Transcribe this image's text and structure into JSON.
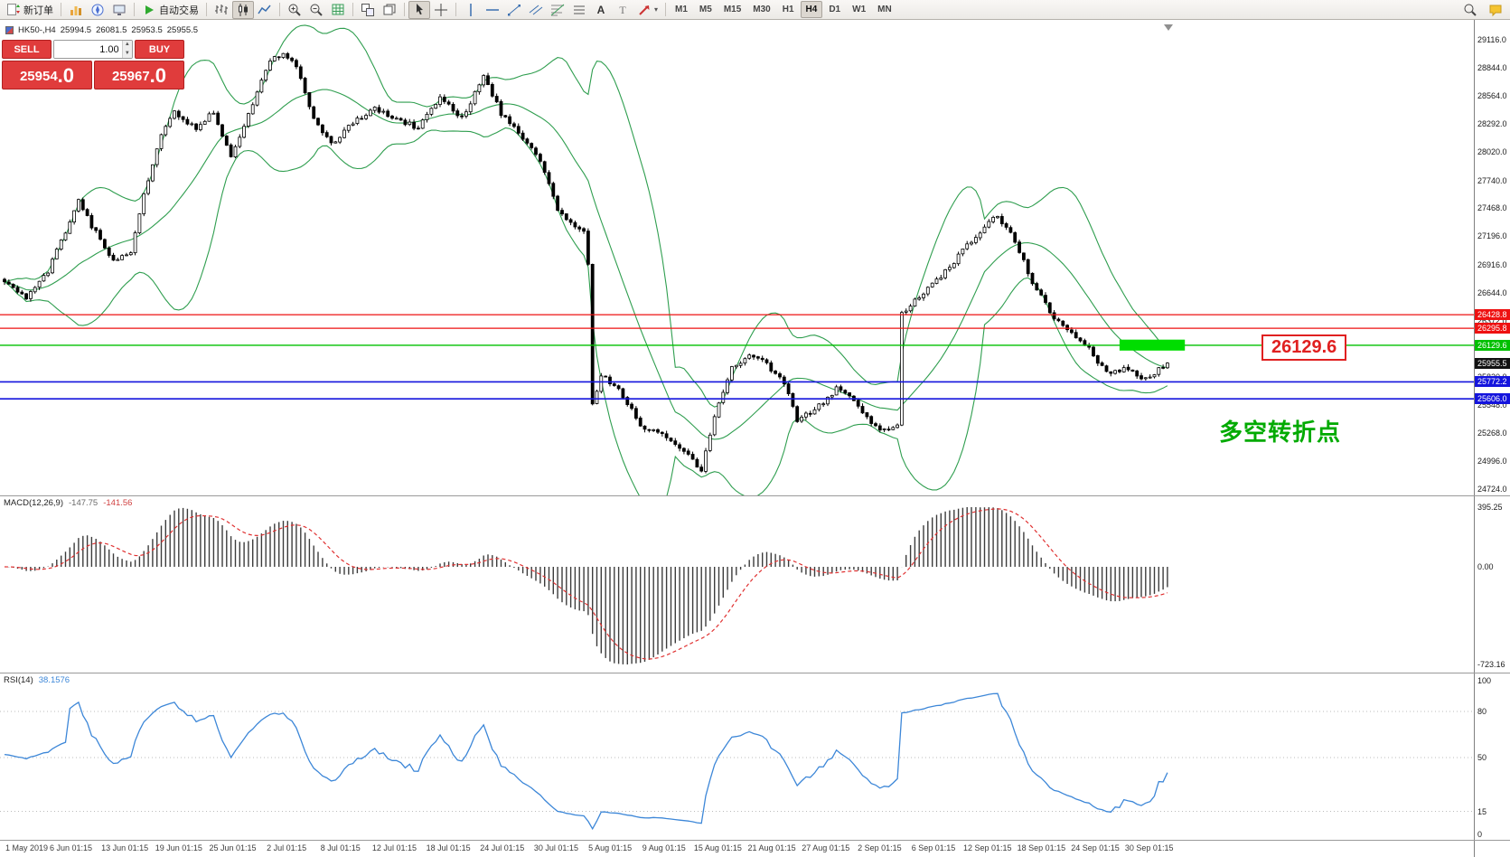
{
  "toolbar": {
    "new_order_label": "新订单",
    "autotrading_label": "自动交易",
    "timeframes": [
      "M1",
      "M5",
      "M15",
      "M30",
      "H1",
      "H4",
      "D1",
      "W1",
      "MN"
    ],
    "active_timeframe": "H4"
  },
  "symbol_header": {
    "symbol": "HK50-,H4",
    "open": "25994.5",
    "high": "26081.5",
    "low": "25953.5",
    "close": "25955.5"
  },
  "trade_panel": {
    "sell_label": "SELL",
    "buy_label": "BUY",
    "volume": "1.00",
    "sell_price": "25954",
    "sell_price_frac": ".0",
    "buy_price": "25967",
    "buy_price_frac": ".0"
  },
  "main_chart": {
    "price_max": 29116.0,
    "price_min": 24724.0,
    "price_labels": [
      "29116.0",
      "28844.0",
      "28564.0",
      "28292.0",
      "28020.0",
      "27740.0",
      "27468.0",
      "27196.0",
      "26916.0",
      "26644.0",
      "26372.0",
      "26100.0",
      "25820.0",
      "25548.0",
      "25268.0",
      "24996.0",
      "24724.0"
    ],
    "hlines": [
      {
        "price": 26428.8,
        "label": "26428.8",
        "color": "#ee1111",
        "width": 1.2
      },
      {
        "price": 26295.8,
        "label": "26295.8",
        "color": "#ee1111",
        "width": 1.2
      },
      {
        "price": 26129.6,
        "label": "26129.6",
        "color": "#00c000",
        "width": 1.4
      },
      {
        "price": 25772.2,
        "label": "25772.2",
        "color": "#1414dd",
        "width": 1.6
      },
      {
        "price": 25606.0,
        "label": "25606.0",
        "color": "#1414dd",
        "width": 1.6
      }
    ],
    "current_price": {
      "label": "25955.5",
      "price": 25955.5,
      "color": "#111111"
    },
    "highlight": {
      "price_top": 26185,
      "price_bottom": 26078,
      "bar_start": 256,
      "bar_end": 271,
      "color": "#00dd00"
    },
    "callout": {
      "text": "26129.6",
      "color": "#e02020"
    },
    "annotation": {
      "text": "多空转折点",
      "color": "#00aa00"
    }
  },
  "macd_panel": {
    "name": "MACD(12,26,9)",
    "value_main": "-147.75",
    "value_signal": "-141.56",
    "scale_labels": [
      "395.25",
      "0.00",
      "-723.16"
    ]
  },
  "rsi_panel": {
    "name": "RSI(14)",
    "value": "38.1576",
    "scale_labels": [
      "100",
      "80",
      "50",
      "15",
      "0"
    ],
    "levels": [
      80,
      50,
      15
    ]
  },
  "time_axis": {
    "labels": [
      "1 May 2019",
      "6 Jun 01:15",
      "13 Jun 01:15",
      "19 Jun 01:15",
      "25 Jun 01:15",
      "2 Jul 01:15",
      "8 Jul 01:15",
      "12 Jul 01:15",
      "18 Jul 01:15",
      "24 Jul 01:15",
      "30 Jul 01:15",
      "5 Aug 01:15",
      "9 Aug 01:15",
      "15 Aug 01:15",
      "21 Aug 01:15",
      "27 Aug 01:15",
      "2 Sep 01:15",
      "6 Sep 01:15",
      "12 Sep 01:15",
      "18 Sep 01:15",
      "24 Sep 01:15",
      "30 Sep 01:15"
    ]
  },
  "chart_data": {
    "type": "candlestick",
    "symbol": "HK50-",
    "timeframe": "H4",
    "bars": 268,
    "last_close": 25955.5,
    "ohlc_current": {
      "open": 25994.5,
      "high": 26081.5,
      "low": 25953.5,
      "close": 25955.5
    },
    "close_anchors": [
      [
        0,
        26750
      ],
      [
        5,
        26600
      ],
      [
        10,
        26850
      ],
      [
        13,
        27150
      ],
      [
        17,
        27550
      ],
      [
        20,
        27300
      ],
      [
        25,
        26950
      ],
      [
        29,
        27050
      ],
      [
        32,
        27600
      ],
      [
        36,
        28200
      ],
      [
        39,
        28400
      ],
      [
        44,
        28250
      ],
      [
        48,
        28420
      ],
      [
        52,
        27950
      ],
      [
        57,
        28500
      ],
      [
        61,
        28930
      ],
      [
        64,
        28980
      ],
      [
        67,
        28850
      ],
      [
        71,
        28350
      ],
      [
        75,
        28100
      ],
      [
        80,
        28300
      ],
      [
        85,
        28450
      ],
      [
        90,
        28350
      ],
      [
        95,
        28250
      ],
      [
        100,
        28550
      ],
      [
        105,
        28350
      ],
      [
        110,
        28750
      ],
      [
        114,
        28400
      ],
      [
        119,
        28150
      ],
      [
        123,
        27950
      ],
      [
        127,
        27450
      ],
      [
        131,
        27300
      ],
      [
        133,
        27250
      ],
      [
        134,
        26900
      ],
      [
        135,
        25550
      ],
      [
        137,
        25850
      ],
      [
        141,
        25700
      ],
      [
        146,
        25350
      ],
      [
        151,
        25250
      ],
      [
        156,
        25100
      ],
      [
        160,
        24900
      ],
      [
        163,
        25450
      ],
      [
        167,
        25900
      ],
      [
        171,
        26050
      ],
      [
        175,
        25950
      ],
      [
        179,
        25750
      ],
      [
        182,
        25400
      ],
      [
        186,
        25500
      ],
      [
        191,
        25700
      ],
      [
        195,
        25600
      ],
      [
        199,
        25350
      ],
      [
        203,
        25300
      ],
      [
        205,
        25350
      ],
      [
        206,
        26450
      ],
      [
        210,
        26600
      ],
      [
        215,
        26800
      ],
      [
        220,
        27050
      ],
      [
        225,
        27300
      ],
      [
        228,
        27400
      ],
      [
        232,
        27150
      ],
      [
        236,
        26750
      ],
      [
        240,
        26450
      ],
      [
        245,
        26250
      ],
      [
        249,
        26100
      ],
      [
        253,
        25850
      ],
      [
        258,
        25900
      ],
      [
        262,
        25800
      ],
      [
        267,
        25955.5
      ]
    ],
    "indicators": {
      "bollinger": {
        "period": 20,
        "deviation": 2
      },
      "macd": {
        "fast": 12,
        "slow": 26,
        "signal": 9
      },
      "rsi": {
        "period": 14
      }
    },
    "colors": {
      "bollinger": "#2f9e4f",
      "candle_up": "#ffffff",
      "candle_down": "#000000",
      "macd_hist": "#3c3c3c",
      "macd_signal": "#e03232",
      "rsi": "#3d87d8"
    }
  }
}
